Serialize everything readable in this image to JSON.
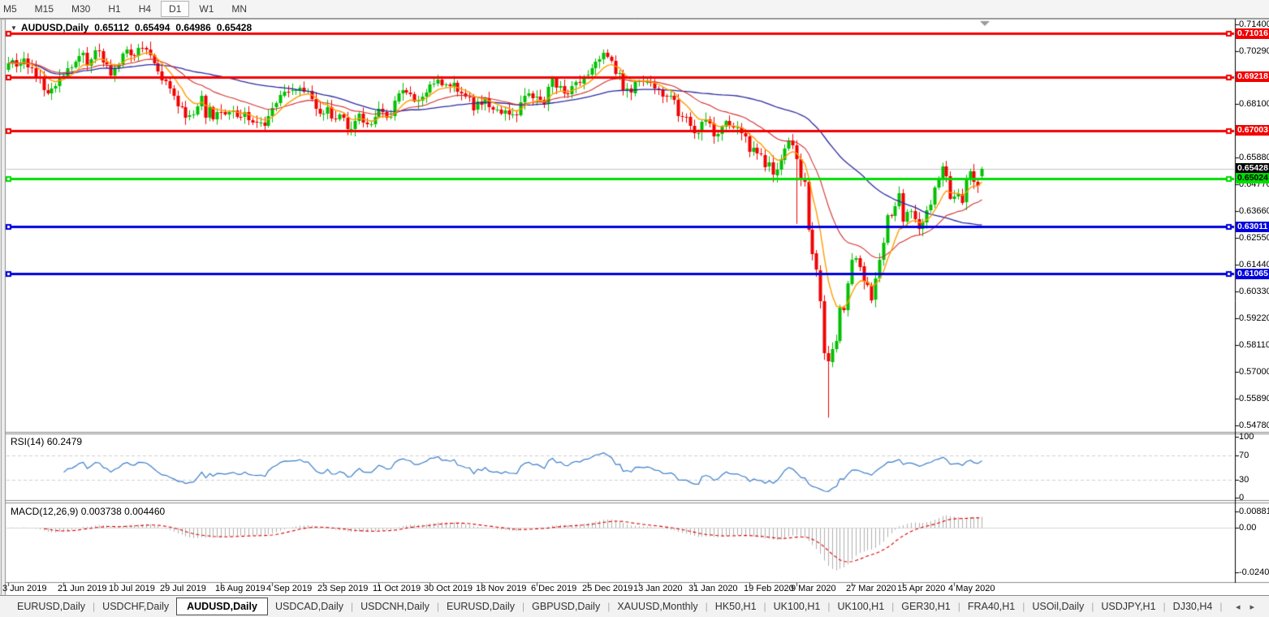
{
  "toolbar": {
    "timeframes": [
      "M5",
      "M15",
      "M30",
      "H1",
      "H4",
      "D1",
      "W1",
      "MN"
    ],
    "active_timeframe": "D1"
  },
  "chart": {
    "title": {
      "symbol": "AUDUSD,Daily",
      "open": "0.65112",
      "high": "0.65494",
      "low": "0.64986",
      "close": "0.65428"
    },
    "price_axis": {
      "ticks": [
        0.714,
        0.7029,
        0.681,
        0.6588,
        0.6477,
        0.6366,
        0.6255,
        0.6144,
        0.6033,
        0.5922,
        0.5811,
        0.57,
        0.5589,
        0.5478
      ]
    },
    "badges": [
      {
        "text": "0.71016",
        "price": 0.71016,
        "bg": "#f20000",
        "fg": "#ffffff"
      },
      {
        "text": "0.69218",
        "price": 0.69218,
        "bg": "#f20000",
        "fg": "#ffffff"
      },
      {
        "text": "0.67003",
        "price": 0.67003,
        "bg": "#f20000",
        "fg": "#ffffff"
      },
      {
        "text": "0.65428",
        "price": 0.65428,
        "bg": "#000000",
        "fg": "#ffffff"
      },
      {
        "text": "0.65024",
        "price": 0.65024,
        "bg": "#00dd00",
        "fg": "#000000"
      },
      {
        "text": "0.63011",
        "price": 0.63011,
        "bg": "#0000dd",
        "fg": "#ffffff"
      },
      {
        "text": "0.61065",
        "price": 0.61065,
        "bg": "#0000dd",
        "fg": "#ffffff"
      }
    ],
    "horizontal_lines": [
      {
        "price": 0.71016,
        "color": "#f20000"
      },
      {
        "price": 0.69218,
        "color": "#f20000"
      },
      {
        "price": 0.67003,
        "color": "#f20000"
      },
      {
        "price": 0.65024,
        "color": "#00dd00"
      },
      {
        "price": 0.63011,
        "color": "#0000dd"
      },
      {
        "price": 0.61065,
        "color": "#0000dd"
      }
    ],
    "current_price_line": {
      "price": 0.65428,
      "color": "#c4c4c4"
    }
  },
  "chart_data": {
    "type": "candlestick",
    "symbol": "AUDUSD",
    "timeframe": "Daily",
    "title": "AUDUSD,Daily  0.65112 0.65494 0.64986 0.65428",
    "up_color": "#00c000",
    "down_color": "#f20000",
    "ma_colors": {
      "fast": "#ff9c00",
      "medium": "#d43030",
      "slow": "#2b2ba0"
    },
    "x_ticks": {
      "labels": [
        "3 Jun 2019",
        "21 Jun 2019",
        "10 Jul 2019",
        "29 Jul 2019",
        "16 Aug 2019",
        "4 Sep 2019",
        "23 Sep 2019",
        "11 Oct 2019",
        "30 Oct 2019",
        "18 Nov 2019",
        "6 Dec 2019",
        "25 Dec 2019",
        "13 Jan 2020",
        "31 Jan 2020",
        "19 Feb 2020",
        "9 Mar 2020",
        "27 Mar 2020",
        "15 Apr 2020",
        "4 May 2020"
      ],
      "bar_indices": [
        0,
        14,
        27,
        40,
        54,
        67,
        80,
        94,
        107,
        120,
        134,
        147,
        160,
        174,
        188,
        200,
        214,
        227,
        240
      ]
    },
    "y_range": [
      0.5478,
      0.714
    ],
    "closes": [
      0.6978,
      0.6993,
      0.6967,
      0.6975,
      0.7,
      0.6962,
      0.696,
      0.6926,
      0.6916,
      0.6868,
      0.6855,
      0.6875,
      0.6884,
      0.6924,
      0.6928,
      0.696,
      0.6963,
      0.6985,
      0.701,
      0.7021,
      0.6966,
      0.6994,
      0.7032,
      0.7028,
      0.6981,
      0.6973,
      0.6929,
      0.6958,
      0.6975,
      0.7019,
      0.7036,
      0.7013,
      0.7009,
      0.7044,
      0.7043,
      0.7037,
      0.7012,
      0.6978,
      0.6946,
      0.691,
      0.6903,
      0.6874,
      0.6845,
      0.68,
      0.6798,
      0.6755,
      0.6762,
      0.6766,
      0.68,
      0.6843,
      0.6752,
      0.6797,
      0.6748,
      0.6778,
      0.6777,
      0.6767,
      0.6777,
      0.6785,
      0.6758,
      0.6755,
      0.6776,
      0.6744,
      0.6735,
      0.6731,
      0.6733,
      0.6718,
      0.676,
      0.6794,
      0.6812,
      0.6846,
      0.6862,
      0.6861,
      0.6866,
      0.6866,
      0.6879,
      0.6862,
      0.6863,
      0.683,
      0.679,
      0.677,
      0.677,
      0.6798,
      0.675,
      0.6748,
      0.6767,
      0.6752,
      0.6704,
      0.6707,
      0.6741,
      0.677,
      0.6733,
      0.6727,
      0.6727,
      0.6758,
      0.679,
      0.6777,
      0.6753,
      0.6758,
      0.6823,
      0.6855,
      0.6868,
      0.6858,
      0.6852,
      0.6822,
      0.6823,
      0.684,
      0.6858,
      0.689,
      0.6895,
      0.6912,
      0.6887,
      0.689,
      0.6882,
      0.6898,
      0.6861,
      0.6853,
      0.684,
      0.6838,
      0.6785,
      0.682,
      0.6808,
      0.6833,
      0.6796,
      0.6786,
      0.6788,
      0.677,
      0.6784,
      0.6767,
      0.6767,
      0.6764,
      0.6818,
      0.6845,
      0.6854,
      0.6835,
      0.684,
      0.6827,
      0.6809,
      0.688,
      0.6914,
      0.6878,
      0.6885,
      0.6855,
      0.6852,
      0.6885,
      0.69,
      0.6895,
      0.6925,
      0.693,
      0.6957,
      0.6985,
      0.6995,
      0.7021,
      0.7005,
      0.6988,
      0.6935,
      0.6938,
      0.6865,
      0.6873,
      0.6856,
      0.6902,
      0.6903,
      0.6898,
      0.6905,
      0.6897,
      0.6875,
      0.6872,
      0.6843,
      0.684,
      0.6845,
      0.6827,
      0.676,
      0.6758,
      0.6757,
      0.672,
      0.669,
      0.669,
      0.6735,
      0.6745,
      0.6728,
      0.6675,
      0.6685,
      0.6715,
      0.6738,
      0.6718,
      0.6712,
      0.6713,
      0.669,
      0.6675,
      0.661,
      0.6627,
      0.6605,
      0.66,
      0.655,
      0.6567,
      0.6515,
      0.6537,
      0.658,
      0.6626,
      0.666,
      0.664,
      0.6583,
      0.65,
      0.6487,
      0.629,
      0.619,
      0.6122,
      0.5993,
      0.5777,
      0.5742,
      0.5795,
      0.5827,
      0.5966,
      0.5955,
      0.6066,
      0.6166,
      0.6172,
      0.6136,
      0.6073,
      0.6058,
      0.5998,
      0.6087,
      0.6163,
      0.6234,
      0.6348,
      0.6345,
      0.6385,
      0.644,
      0.6323,
      0.6364,
      0.6367,
      0.6334,
      0.6292,
      0.632,
      0.6369,
      0.6394,
      0.6464,
      0.6494,
      0.6552,
      0.6512,
      0.6419,
      0.6428,
      0.6438,
      0.6401,
      0.6496,
      0.6531,
      0.6488,
      0.6472,
      0.65428
    ],
    "special_bars": [
      {
        "index": 200,
        "high": 0.666,
        "low": 0.6313
      },
      {
        "index": 208,
        "low": 0.551
      },
      {
        "index": 247,
        "open": 0.65112,
        "high": 0.65494,
        "low": 0.64986,
        "close": 0.65428
      }
    ]
  },
  "rsi": {
    "label": "RSI(14)",
    "value": "60.2479",
    "levels": [
      70,
      30
    ],
    "axis": [
      100,
      70,
      30,
      0
    ],
    "line_color": "#3d7ecb"
  },
  "macd": {
    "label": "MACD(12,26,9)",
    "value_main": "0.003738",
    "value_signal": "0.004460",
    "axis": [
      {
        "text": "0.008815",
        "v": 0.008815
      },
      {
        "text": "0.00",
        "v": 0
      },
      {
        "text": "-0.024082",
        "v": -0.024082
      }
    ],
    "hist_color": "#b0b0b0",
    "signal_color": "#dd0000"
  },
  "tabs": {
    "items": [
      "EURUSD,Daily",
      "USDCHF,Daily",
      "AUDUSD,Daily",
      "USDCAD,Daily",
      "USDCNH,Daily",
      "EURUSD,Daily",
      "GBPUSD,Daily",
      "XAUUSD,Monthly",
      "HK50,H1",
      "UK100,H1",
      "UK100,H1",
      "GER30,H1",
      "FRA40,H1",
      "USOil,Daily",
      "USDJPY,H1",
      "DJ30,H4"
    ],
    "active_index": 2,
    "scroll_left_icon": "◂",
    "scroll_right_icon": "▸"
  }
}
